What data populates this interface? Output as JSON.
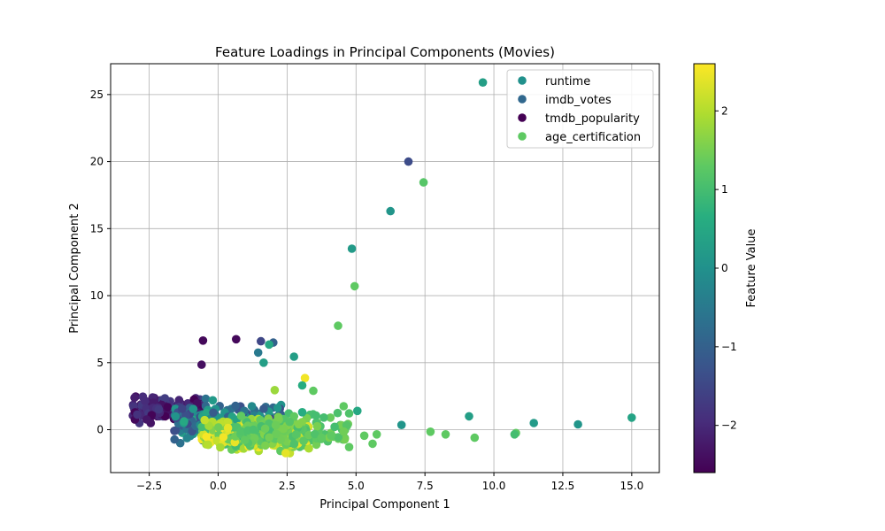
{
  "chart_data": {
    "type": "scatter",
    "title": "Feature Loadings in Principal Components (Movies)",
    "xlabel": "Principal Component 1",
    "ylabel": "Principal Component 2",
    "xlim": [
      -3.9,
      16.0
    ],
    "ylim": [
      -3.2,
      27.3
    ],
    "xticks": [
      -2.5,
      0.0,
      2.5,
      5.0,
      7.5,
      10.0,
      12.5,
      15.0
    ],
    "xtick_labels": [
      "−2.5",
      "0.0",
      "2.5",
      "5.0",
      "7.5",
      "10.0",
      "12.5",
      "15.0"
    ],
    "yticks": [
      0,
      5,
      10,
      15,
      20,
      25
    ],
    "ytick_labels": [
      "0",
      "5",
      "10",
      "15",
      "20",
      "25"
    ],
    "grid": true,
    "legend": {
      "placement": "top-right",
      "entries": [
        {
          "name": "runtime",
          "color": "#21918c"
        },
        {
          "name": "imdb_votes",
          "color": "#31688e"
        },
        {
          "name": "tmdb_popularity",
          "color": "#440154"
        },
        {
          "name": "age_certification",
          "color": "#5ec962"
        }
      ]
    },
    "colorbar": {
      "label": "Feature Value",
      "colormap": "viridis",
      "range": [
        -2.6,
        2.6
      ],
      "ticks": [
        -2,
        -1,
        0,
        1,
        2
      ],
      "tick_labels": [
        "−2",
        "−1",
        "0",
        "1",
        "2"
      ]
    },
    "outlier_points": [
      {
        "x": 9.6,
        "y": 25.9,
        "v": 0.3
      },
      {
        "x": 6.9,
        "y": 20.0,
        "v": -1.4
      },
      {
        "x": 7.45,
        "y": 18.45,
        "v": 1.2
      },
      {
        "x": 6.25,
        "y": 16.3,
        "v": 0.1
      },
      {
        "x": 4.85,
        "y": 13.5,
        "v": 0.2
      },
      {
        "x": 4.95,
        "y": 10.7,
        "v": 1.3
      },
      {
        "x": 4.35,
        "y": 7.75,
        "v": 1.3
      },
      {
        "x": -0.55,
        "y": 6.65,
        "v": -2.5
      },
      {
        "x": 0.65,
        "y": 6.75,
        "v": -2.5
      },
      {
        "x": 1.55,
        "y": 6.6,
        "v": -1.5
      },
      {
        "x": 2.0,
        "y": 6.5,
        "v": -1.0
      },
      {
        "x": 1.85,
        "y": 6.35,
        "v": 0.5
      },
      {
        "x": -0.6,
        "y": 4.85,
        "v": -2.4
      },
      {
        "x": 1.45,
        "y": 5.75,
        "v": -0.5
      },
      {
        "x": 1.65,
        "y": 5.0,
        "v": 0.3
      },
      {
        "x": 2.75,
        "y": 5.45,
        "v": 0.3
      },
      {
        "x": 3.15,
        "y": 3.85,
        "v": 2.5
      },
      {
        "x": 3.05,
        "y": 3.3,
        "v": 0.6
      },
      {
        "x": 3.45,
        "y": 2.9,
        "v": 1.3
      },
      {
        "x": 2.05,
        "y": 2.95,
        "v": 1.8
      },
      {
        "x": 4.55,
        "y": 1.75,
        "v": 1.3
      },
      {
        "x": 5.05,
        "y": 1.4,
        "v": 0.5
      },
      {
        "x": 3.05,
        "y": 1.3,
        "v": 0.6
      },
      {
        "x": 9.1,
        "y": 1.0,
        "v": 0.3
      },
      {
        "x": 15.0,
        "y": 0.9,
        "v": 0.4
      },
      {
        "x": 11.45,
        "y": 0.5,
        "v": 0.2
      },
      {
        "x": 13.05,
        "y": 0.4,
        "v": 0.1
      },
      {
        "x": 6.65,
        "y": 0.35,
        "v": 0.1
      },
      {
        "x": 7.7,
        "y": -0.15,
        "v": 1.3
      },
      {
        "x": 8.25,
        "y": -0.35,
        "v": 1.3
      },
      {
        "x": 9.3,
        "y": -0.6,
        "v": 1.3
      },
      {
        "x": 10.8,
        "y": -0.25,
        "v": 1.3
      },
      {
        "x": 10.75,
        "y": -0.35,
        "v": 1.0
      },
      {
        "x": 5.3,
        "y": -0.45,
        "v": 1.3
      },
      {
        "x": 5.75,
        "y": -0.35,
        "v": 1.3
      },
      {
        "x": 5.6,
        "y": -1.05,
        "v": 1.3
      },
      {
        "x": 4.75,
        "y": -1.3,
        "v": 1.3
      },
      {
        "x": 2.45,
        "y": -1.75,
        "v": 2.4
      },
      {
        "x": 3.75,
        "y": -0.6,
        "v": 1.3
      },
      {
        "x": 4.1,
        "y": -0.45,
        "v": 1.3
      },
      {
        "x": 3.55,
        "y": 1.05,
        "v": 1.0
      }
    ],
    "clusters": [
      {
        "x_range": [
          -3.1,
          -0.6
        ],
        "y_center": 1.5,
        "y_spread": 0.9,
        "v_range": [
          -2.6,
          -1.6
        ],
        "count": 170
      },
      {
        "x_range": [
          -1.6,
          2.4
        ],
        "y_center": 0.6,
        "y_spread": 1.3,
        "v_range": [
          -1.6,
          0.6
        ],
        "count": 240
      },
      {
        "x_range": [
          -0.6,
          3.3
        ],
        "y_center": -0.5,
        "y_spread": 1.0,
        "v_range": [
          0.9,
          2.6
        ],
        "count": 320
      },
      {
        "x_range": [
          0.8,
          4.8
        ],
        "y_center": 0.0,
        "y_spread": 1.0,
        "v_range": [
          1.0,
          1.6
        ],
        "count": 130
      }
    ]
  }
}
